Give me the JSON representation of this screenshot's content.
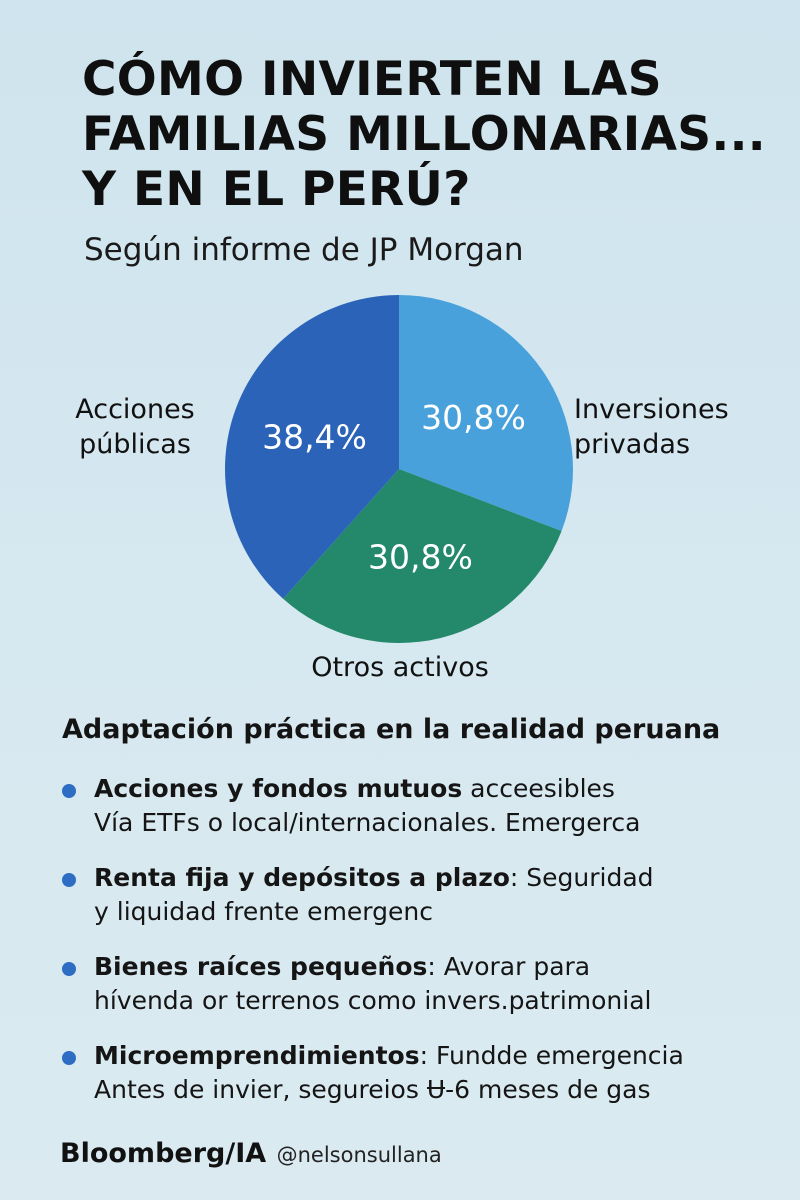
{
  "title_lines": [
    "CÓMO INVIERTEN LAS",
    "FAMILIAS MILLONARIAS...",
    "Y EN EL PERÚ?"
  ],
  "subtitle": "Según informe de JP Morgan",
  "chart_data": {
    "type": "pie",
    "categories": [
      "Inversiones privadas",
      "Otros activos",
      "Acciones públicas"
    ],
    "values": [
      30.8,
      30.8,
      38.4
    ],
    "value_labels": [
      "30,8%",
      "30,8%",
      "38,4%"
    ],
    "colors": [
      "#49a1dc",
      "#24896b",
      "#2a63b8"
    ],
    "category_label_lines": [
      [
        "Inversiones",
        "privadas"
      ],
      [
        "Otros activos"
      ],
      [
        "Acciones",
        "públicas"
      ]
    ]
  },
  "section": {
    "heading": "Adaptación práctica en la realidad peruana",
    "bullet_color": "#2d6ec4",
    "items": [
      {
        "bold": "Acciones y fondos mutuos",
        "rest": " acceesibles",
        "line2": "Vía ETFs o local/internacionales. Emergerca"
      },
      {
        "bold": "Renta fija y depósitos a plazo",
        "rest": ": Seguridad",
        "line2": "y liquidad frente emergenc"
      },
      {
        "bold": "Bienes raíces pequeños",
        "rest": ": Avorar para",
        "line2": "hívenda or terrenos como invers.patrimonial"
      },
      {
        "bold": "Microemprendimientos",
        "rest": ": Fundde emergencia",
        "line2": "Antes de invier, segureios Ʉ-6 meses de gas"
      }
    ]
  },
  "footer": {
    "brand": "Bloomberg/IA",
    "handle": "@nelsonsullana"
  }
}
